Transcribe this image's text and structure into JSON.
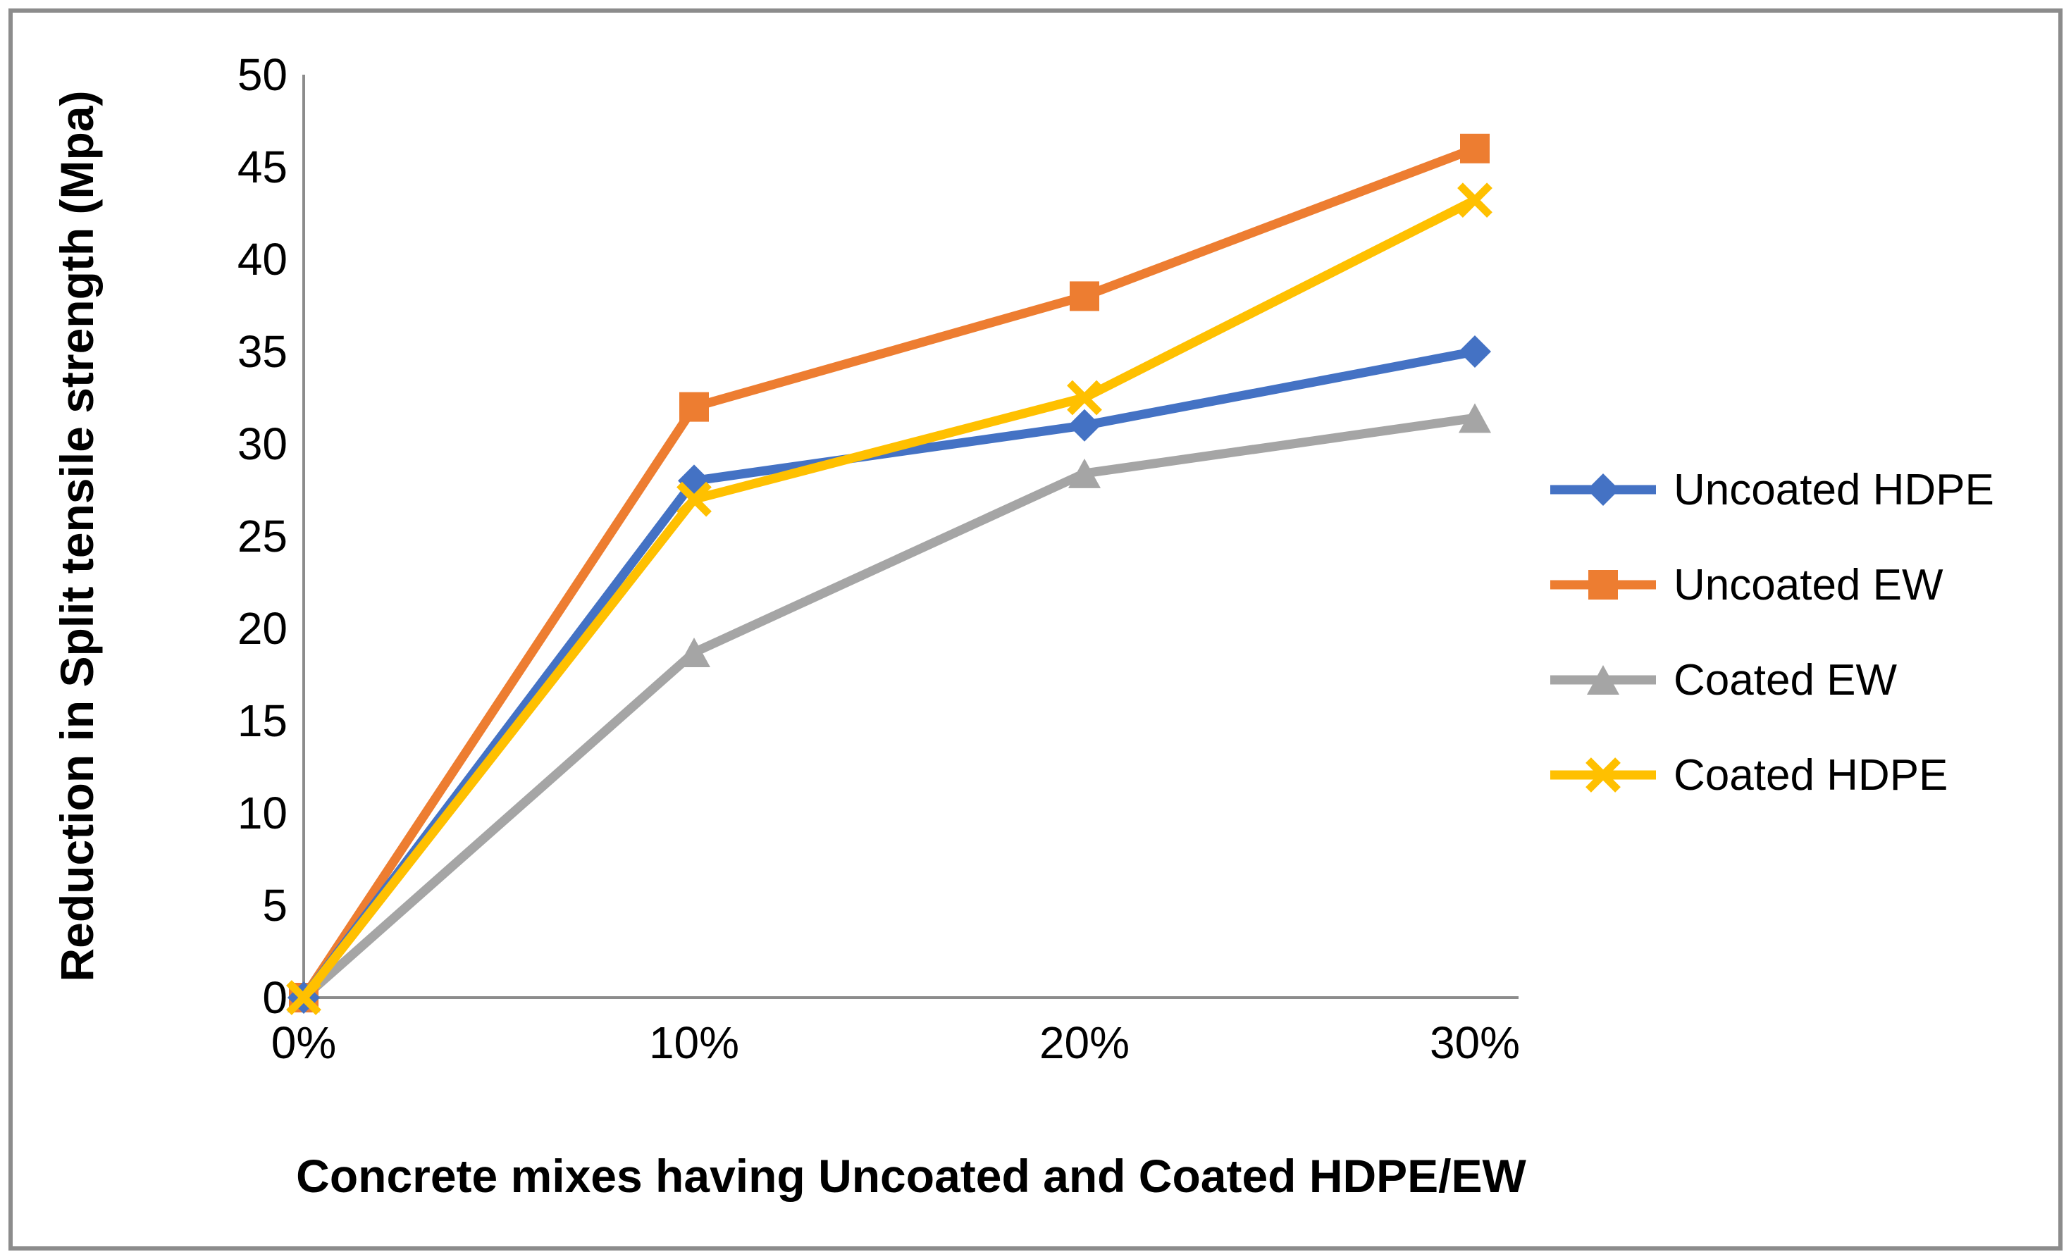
{
  "chart_data": {
    "type": "line",
    "categories": [
      "0%",
      "10%",
      "20%",
      "30%"
    ],
    "series": [
      {
        "name": "Uncoated HDPE",
        "color": "#4472C4",
        "marker": "diamond",
        "values": [
          0,
          28,
          31,
          35
        ]
      },
      {
        "name": "Uncoated EW",
        "color": "#ED7D31",
        "marker": "square",
        "values": [
          0,
          32,
          38,
          46
        ]
      },
      {
        "name": "Coated EW",
        "color": "#A5A5A5",
        "marker": "triangle",
        "values": [
          0,
          18.7,
          28.4,
          31.4
        ]
      },
      {
        "name": "Coated HDPE",
        "color": "#FFC000",
        "marker": "x",
        "values": [
          0,
          27,
          32.5,
          43.2
        ]
      }
    ],
    "xlabel": "Concrete mixes having Uncoated and Coated HDPE/EW",
    "ylabel": "Reduction in Split tensile strength (Mpa)",
    "ylim": [
      0,
      50
    ],
    "ytick_step": 5,
    "ytick_labels": [
      "0",
      "5",
      "10",
      "15",
      "20",
      "25",
      "30",
      "35",
      "40",
      "45",
      "50"
    ],
    "grid": false,
    "legend_position": "right",
    "axis_color": "#8C8C8C"
  }
}
